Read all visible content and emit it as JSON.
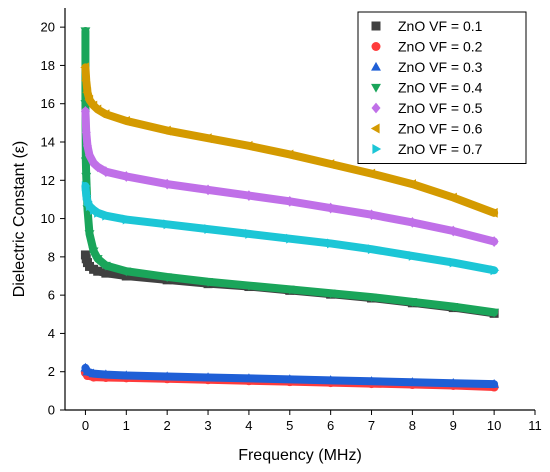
{
  "chart_data": {
    "type": "scatter",
    "title": "",
    "xlabel": "Frequency (MHz)",
    "ylabel": "Dielectric Constant (ε)",
    "xlim": [
      -0.5,
      11
    ],
    "ylim": [
      0,
      21
    ],
    "xticks": [
      0,
      1,
      2,
      3,
      4,
      5,
      6,
      7,
      8,
      9,
      10,
      11
    ],
    "yticks": [
      0,
      2,
      4,
      6,
      8,
      10,
      12,
      14,
      16,
      18,
      20
    ],
    "grid": false,
    "legend_position": "top-right",
    "series": [
      {
        "name": "ZnO VF = 0.1",
        "marker": "square",
        "color": "#404040",
        "points": [
          {
            "x": 0.0,
            "y": 8.1
          },
          {
            "x": 0.02,
            "y": 7.9
          },
          {
            "x": 0.05,
            "y": 7.7
          },
          {
            "x": 0.1,
            "y": 7.5
          },
          {
            "x": 0.2,
            "y": 7.35
          },
          {
            "x": 0.3,
            "y": 7.25
          },
          {
            "x": 0.5,
            "y": 7.15
          },
          {
            "x": 1.0,
            "y": 7.0
          },
          {
            "x": 2.0,
            "y": 6.8
          },
          {
            "x": 3.0,
            "y": 6.6
          },
          {
            "x": 4.0,
            "y": 6.45
          },
          {
            "x": 5.0,
            "y": 6.25
          },
          {
            "x": 6.0,
            "y": 6.05
          },
          {
            "x": 7.0,
            "y": 5.85
          },
          {
            "x": 8.0,
            "y": 5.6
          },
          {
            "x": 9.0,
            "y": 5.35
          },
          {
            "x": 10.0,
            "y": 5.05
          }
        ]
      },
      {
        "name": "ZnO VF = 0.2",
        "marker": "circle",
        "color": "#ff3b3b",
        "points": [
          {
            "x": 0.0,
            "y": 1.95
          },
          {
            "x": 0.05,
            "y": 1.8
          },
          {
            "x": 0.2,
            "y": 1.72
          },
          {
            "x": 0.5,
            "y": 1.7
          },
          {
            "x": 1.0,
            "y": 1.68
          },
          {
            "x": 2.0,
            "y": 1.63
          },
          {
            "x": 3.0,
            "y": 1.58
          },
          {
            "x": 4.0,
            "y": 1.53
          },
          {
            "x": 5.0,
            "y": 1.48
          },
          {
            "x": 6.0,
            "y": 1.43
          },
          {
            "x": 7.0,
            "y": 1.38
          },
          {
            "x": 8.0,
            "y": 1.33
          },
          {
            "x": 9.0,
            "y": 1.28
          },
          {
            "x": 10.0,
            "y": 1.2
          }
        ]
      },
      {
        "name": "ZnO VF = 0.3",
        "marker": "triangle-up",
        "color": "#1f5fd6",
        "points": [
          {
            "x": 0.0,
            "y": 2.2
          },
          {
            "x": 0.05,
            "y": 2.0
          },
          {
            "x": 0.2,
            "y": 1.9
          },
          {
            "x": 0.5,
            "y": 1.85
          },
          {
            "x": 1.0,
            "y": 1.8
          },
          {
            "x": 2.0,
            "y": 1.75
          },
          {
            "x": 3.0,
            "y": 1.7
          },
          {
            "x": 4.0,
            "y": 1.65
          },
          {
            "x": 5.0,
            "y": 1.6
          },
          {
            "x": 6.0,
            "y": 1.55
          },
          {
            "x": 7.0,
            "y": 1.5
          },
          {
            "x": 8.0,
            "y": 1.45
          },
          {
            "x": 9.0,
            "y": 1.4
          },
          {
            "x": 10.0,
            "y": 1.35
          }
        ]
      },
      {
        "name": "ZnO VF = 0.4",
        "marker": "triangle-down",
        "color": "#1aa55a",
        "points": [
          {
            "x": 0.0,
            "y": 19.8
          },
          {
            "x": 0.0,
            "y": 16.0
          },
          {
            "x": 0.01,
            "y": 13.0
          },
          {
            "x": 0.02,
            "y": 12.2
          },
          {
            "x": 0.05,
            "y": 10.5
          },
          {
            "x": 0.1,
            "y": 9.2
          },
          {
            "x": 0.2,
            "y": 8.3
          },
          {
            "x": 0.3,
            "y": 7.9
          },
          {
            "x": 0.5,
            "y": 7.55
          },
          {
            "x": 1.0,
            "y": 7.25
          },
          {
            "x": 2.0,
            "y": 6.95
          },
          {
            "x": 3.0,
            "y": 6.7
          },
          {
            "x": 4.0,
            "y": 6.5
          },
          {
            "x": 5.0,
            "y": 6.3
          },
          {
            "x": 6.0,
            "y": 6.1
          },
          {
            "x": 7.0,
            "y": 5.9
          },
          {
            "x": 8.0,
            "y": 5.65
          },
          {
            "x": 9.0,
            "y": 5.4
          },
          {
            "x": 10.0,
            "y": 5.1
          }
        ]
      },
      {
        "name": "ZnO VF = 0.5",
        "marker": "diamond",
        "color": "#c070e8",
        "points": [
          {
            "x": 0.0,
            "y": 15.6
          },
          {
            "x": 0.02,
            "y": 14.5
          },
          {
            "x": 0.05,
            "y": 13.8
          },
          {
            "x": 0.1,
            "y": 13.3
          },
          {
            "x": 0.2,
            "y": 12.9
          },
          {
            "x": 0.3,
            "y": 12.7
          },
          {
            "x": 0.5,
            "y": 12.45
          },
          {
            "x": 1.0,
            "y": 12.2
          },
          {
            "x": 2.0,
            "y": 11.8
          },
          {
            "x": 3.0,
            "y": 11.5
          },
          {
            "x": 4.0,
            "y": 11.2
          },
          {
            "x": 5.0,
            "y": 10.9
          },
          {
            "x": 6.0,
            "y": 10.55
          },
          {
            "x": 7.0,
            "y": 10.2
          },
          {
            "x": 8.0,
            "y": 9.8
          },
          {
            "x": 9.0,
            "y": 9.35
          },
          {
            "x": 10.0,
            "y": 8.8
          }
        ]
      },
      {
        "name": "ZnO VF = 0.6",
        "marker": "triangle-left",
        "color": "#d49a00",
        "points": [
          {
            "x": 0.0,
            "y": 17.9
          },
          {
            "x": 0.02,
            "y": 17.2
          },
          {
            "x": 0.05,
            "y": 16.6
          },
          {
            "x": 0.1,
            "y": 16.2
          },
          {
            "x": 0.2,
            "y": 15.9
          },
          {
            "x": 0.3,
            "y": 15.7
          },
          {
            "x": 0.5,
            "y": 15.45
          },
          {
            "x": 1.0,
            "y": 15.1
          },
          {
            "x": 2.0,
            "y": 14.6
          },
          {
            "x": 3.0,
            "y": 14.2
          },
          {
            "x": 4.0,
            "y": 13.8
          },
          {
            "x": 5.0,
            "y": 13.35
          },
          {
            "x": 6.0,
            "y": 12.85
          },
          {
            "x": 7.0,
            "y": 12.35
          },
          {
            "x": 8.0,
            "y": 11.8
          },
          {
            "x": 9.0,
            "y": 11.1
          },
          {
            "x": 10.0,
            "y": 10.3
          }
        ]
      },
      {
        "name": "ZnO VF = 0.7",
        "marker": "triangle-right",
        "color": "#1cc6d6",
        "points": [
          {
            "x": 0.0,
            "y": 11.7
          },
          {
            "x": 0.02,
            "y": 11.2
          },
          {
            "x": 0.05,
            "y": 10.9
          },
          {
            "x": 0.1,
            "y": 10.65
          },
          {
            "x": 0.2,
            "y": 10.45
          },
          {
            "x": 0.3,
            "y": 10.3
          },
          {
            "x": 0.5,
            "y": 10.15
          },
          {
            "x": 1.0,
            "y": 9.95
          },
          {
            "x": 2.0,
            "y": 9.7
          },
          {
            "x": 3.0,
            "y": 9.45
          },
          {
            "x": 4.0,
            "y": 9.2
          },
          {
            "x": 5.0,
            "y": 8.95
          },
          {
            "x": 6.0,
            "y": 8.7
          },
          {
            "x": 7.0,
            "y": 8.4
          },
          {
            "x": 8.0,
            "y": 8.05
          },
          {
            "x": 9.0,
            "y": 7.7
          },
          {
            "x": 10.0,
            "y": 7.3
          }
        ]
      }
    ]
  }
}
